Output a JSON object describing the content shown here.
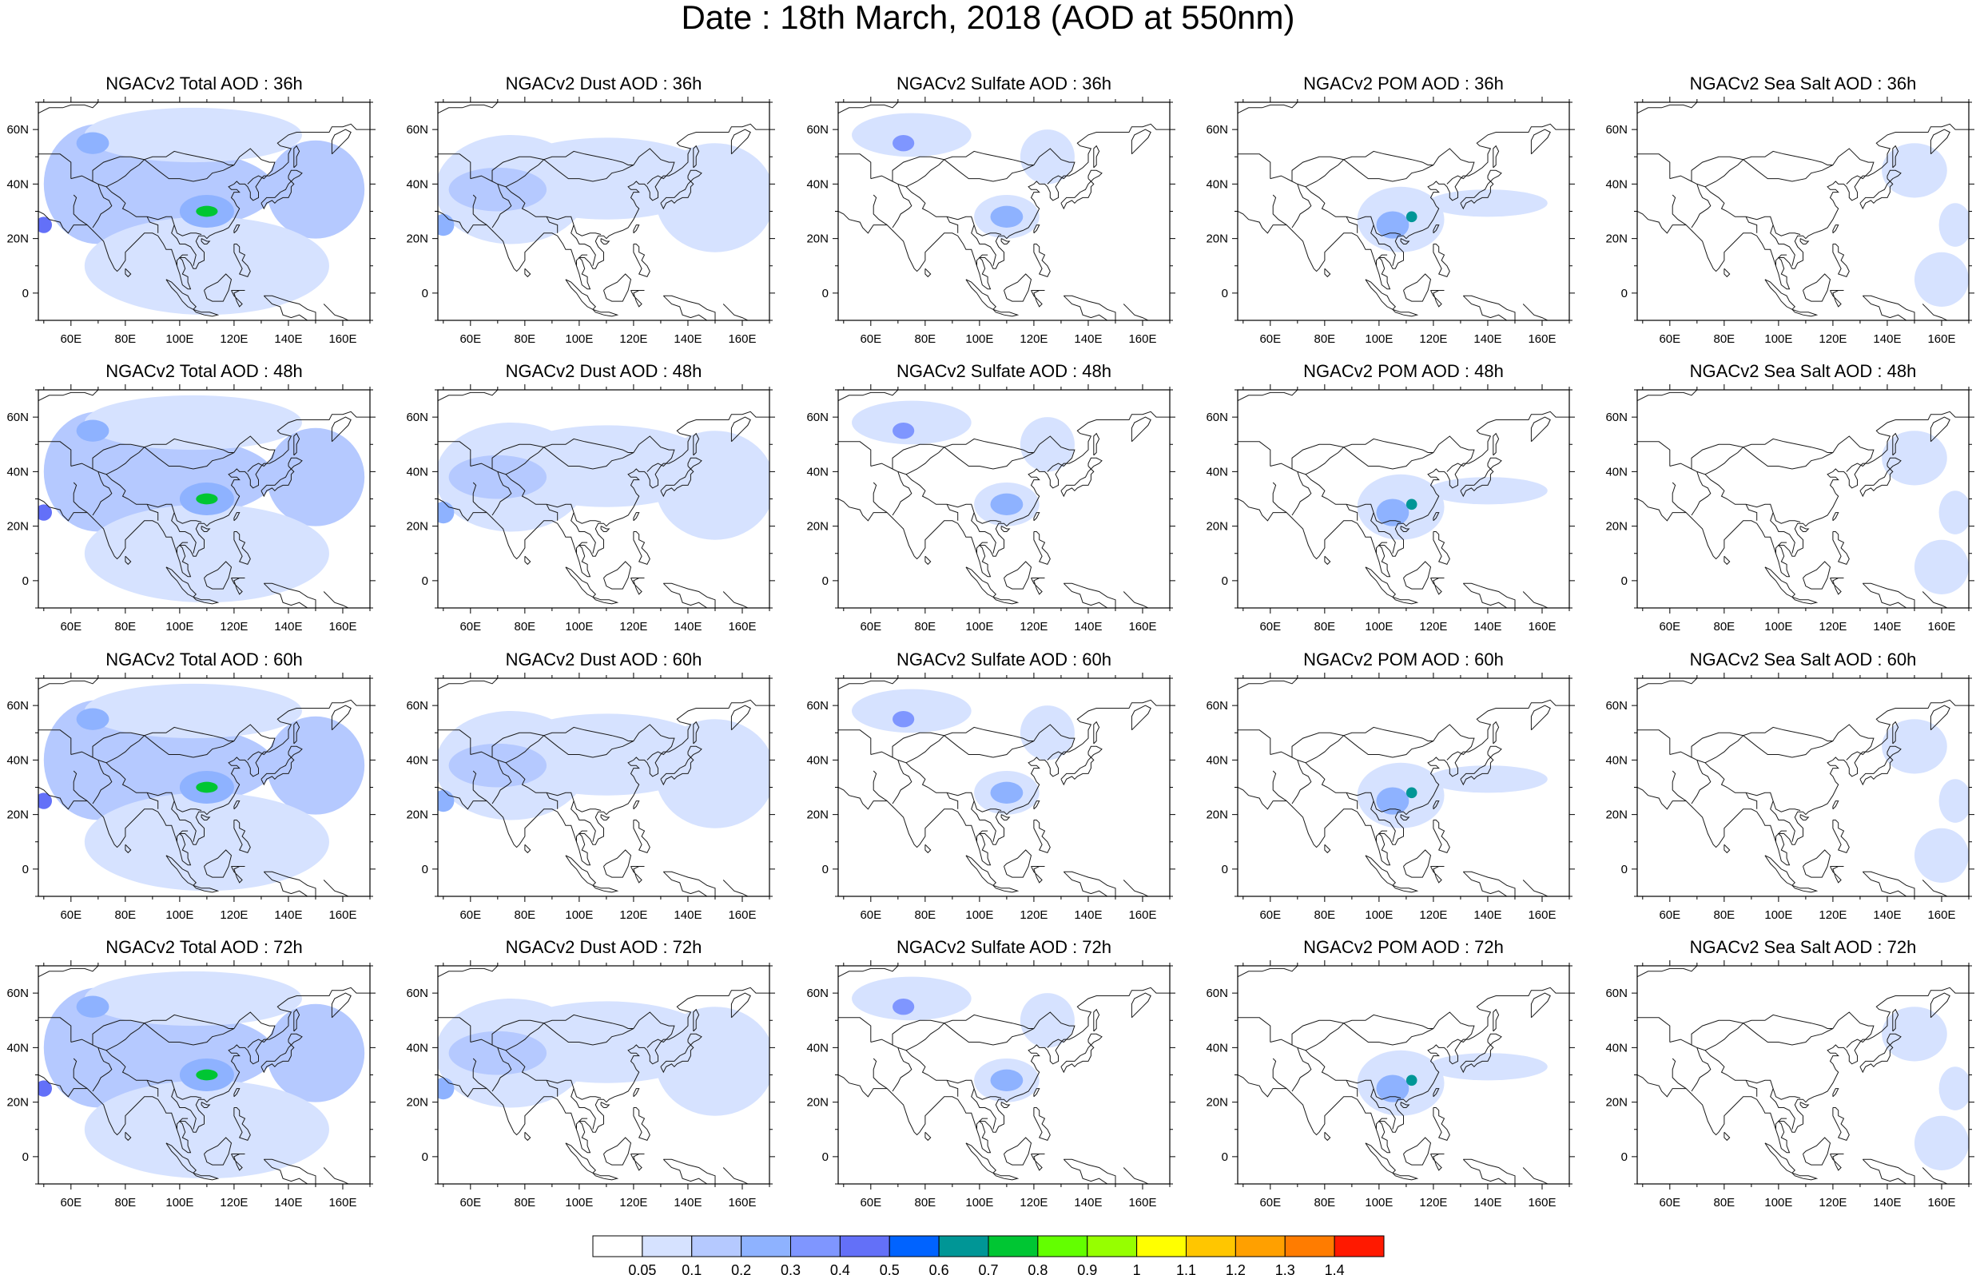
{
  "figure": {
    "title": "Date : 18th March, 2018 (AOD at 550nm)",
    "x_tick_labels": [
      "60E",
      "80E",
      "100E",
      "120E",
      "140E",
      "160E"
    ],
    "y_tick_labels": [
      "60N",
      "40N",
      "20N",
      "0"
    ],
    "lon_range": [
      48,
      170
    ],
    "lat_range": [
      -10,
      70
    ]
  },
  "panels": [
    {
      "title": "NGACv2 Total AOD : 36h",
      "species": "total",
      "lead": "36h"
    },
    {
      "title": "NGACv2 Dust AOD : 36h",
      "species": "dust",
      "lead": "36h"
    },
    {
      "title": "NGACv2 Sulfate AOD : 36h",
      "species": "sulfate",
      "lead": "36h"
    },
    {
      "title": "NGACv2 POM AOD : 36h",
      "species": "pom",
      "lead": "36h"
    },
    {
      "title": "NGACv2 Sea Salt AOD : 36h",
      "species": "seasalt",
      "lead": "36h"
    },
    {
      "title": "NGACv2 Total AOD : 48h",
      "species": "total",
      "lead": "48h"
    },
    {
      "title": "NGACv2 Dust AOD : 48h",
      "species": "dust",
      "lead": "48h"
    },
    {
      "title": "NGACv2 Sulfate AOD : 48h",
      "species": "sulfate",
      "lead": "48h"
    },
    {
      "title": "NGACv2 POM AOD : 48h",
      "species": "pom",
      "lead": "48h"
    },
    {
      "title": "NGACv2 Sea Salt AOD : 48h",
      "species": "seasalt",
      "lead": "48h"
    },
    {
      "title": "NGACv2 Total AOD : 60h",
      "species": "total",
      "lead": "60h"
    },
    {
      "title": "NGACv2 Dust AOD : 60h",
      "species": "dust",
      "lead": "60h"
    },
    {
      "title": "NGACv2 Sulfate AOD : 60h",
      "species": "sulfate",
      "lead": "60h"
    },
    {
      "title": "NGACv2 POM AOD : 60h",
      "species": "pom",
      "lead": "60h"
    },
    {
      "title": "NGACv2 Sea Salt AOD : 60h",
      "species": "seasalt",
      "lead": "60h"
    },
    {
      "title": "NGACv2 Total AOD : 72h",
      "species": "total",
      "lead": "72h"
    },
    {
      "title": "NGACv2 Dust AOD : 72h",
      "species": "dust",
      "lead": "72h"
    },
    {
      "title": "NGACv2 Sulfate AOD : 72h",
      "species": "sulfate",
      "lead": "72h"
    },
    {
      "title": "NGACv2 POM AOD : 72h",
      "species": "pom",
      "lead": "72h"
    },
    {
      "title": "NGACv2 Sea Salt  AOD : 72h",
      "species": "seasalt",
      "lead": "72h"
    }
  ],
  "colorbar": {
    "labels": [
      "0.05",
      "0.1",
      "0.2",
      "0.3",
      "0.4",
      "0.5",
      "0.6",
      "0.7",
      "0.8",
      "0.9",
      "1",
      "1.1",
      "1.2",
      "1.3",
      "1.4"
    ],
    "colors": [
      "#ffffff",
      "#d6e2ff",
      "#b5c9ff",
      "#8eb2ff",
      "#7f96ff",
      "#6370f8",
      "#0063ff",
      "#009696",
      "#00c633",
      "#63ff00",
      "#96ff00",
      "#ffff00",
      "#ffc600",
      "#ffa000",
      "#ff7c00",
      "#ff1900"
    ]
  },
  "species_fields": {
    "total": [
      {
        "lon": 70,
        "lat": 40,
        "level": 2,
        "rlon": 20,
        "rlat": 22
      },
      {
        "lon": 95,
        "lat": 38,
        "level": 2,
        "rlon": 40,
        "rlat": 15
      },
      {
        "lon": 150,
        "lat": 38,
        "level": 2,
        "rlon": 18,
        "rlat": 18
      },
      {
        "lon": 110,
        "lat": 10,
        "level": 1,
        "rlon": 45,
        "rlat": 18
      },
      {
        "lon": 105,
        "lat": 58,
        "level": 1,
        "rlon": 40,
        "rlat": 10
      },
      {
        "lon": 110,
        "lat": 30,
        "level": 3,
        "rlon": 10,
        "rlat": 6
      },
      {
        "lon": 68,
        "lat": 55,
        "level": 3,
        "rlon": 6,
        "rlat": 4
      },
      {
        "lon": 110,
        "lat": 30,
        "level": 8,
        "rlon": 4,
        "rlat": 2
      },
      {
        "lon": 50,
        "lat": 25,
        "level": 5,
        "rlon": 3,
        "rlat": 3
      }
    ],
    "dust": [
      {
        "lon": 75,
        "lat": 38,
        "level": 1,
        "rlon": 28,
        "rlat": 20
      },
      {
        "lon": 110,
        "lat": 42,
        "level": 1,
        "rlon": 40,
        "rlat": 15
      },
      {
        "lon": 150,
        "lat": 35,
        "level": 1,
        "rlon": 22,
        "rlat": 20
      },
      {
        "lon": 70,
        "lat": 38,
        "level": 2,
        "rlon": 18,
        "rlat": 8
      },
      {
        "lon": 50,
        "lat": 25,
        "level": 3,
        "rlon": 4,
        "rlat": 4
      }
    ],
    "sulfate": [
      {
        "lon": 75,
        "lat": 58,
        "level": 1,
        "rlon": 22,
        "rlat": 8
      },
      {
        "lon": 110,
        "lat": 28,
        "level": 1,
        "rlon": 12,
        "rlat": 8
      },
      {
        "lon": 125,
        "lat": 50,
        "level": 1,
        "rlon": 10,
        "rlat": 10
      },
      {
        "lon": 110,
        "lat": 28,
        "level": 3,
        "rlon": 6,
        "rlat": 4
      },
      {
        "lon": 72,
        "lat": 55,
        "level": 4,
        "rlon": 4,
        "rlat": 3
      }
    ],
    "pom": [
      {
        "lon": 108,
        "lat": 27,
        "level": 1,
        "rlon": 16,
        "rlat": 12
      },
      {
        "lon": 140,
        "lat": 33,
        "level": 1,
        "rlon": 22,
        "rlat": 5
      },
      {
        "lon": 105,
        "lat": 25,
        "level": 3,
        "rlon": 6,
        "rlat": 5
      },
      {
        "lon": 112,
        "lat": 28,
        "level": 7,
        "rlon": 2,
        "rlat": 2
      }
    ],
    "seasalt": [
      {
        "lon": 150,
        "lat": 45,
        "level": 1,
        "rlon": 12,
        "rlat": 10
      },
      {
        "lon": 160,
        "lat": 5,
        "level": 1,
        "rlon": 10,
        "rlat": 10
      },
      {
        "lon": 165,
        "lat": 25,
        "level": 1,
        "rlon": 6,
        "rlat": 8
      }
    ]
  }
}
